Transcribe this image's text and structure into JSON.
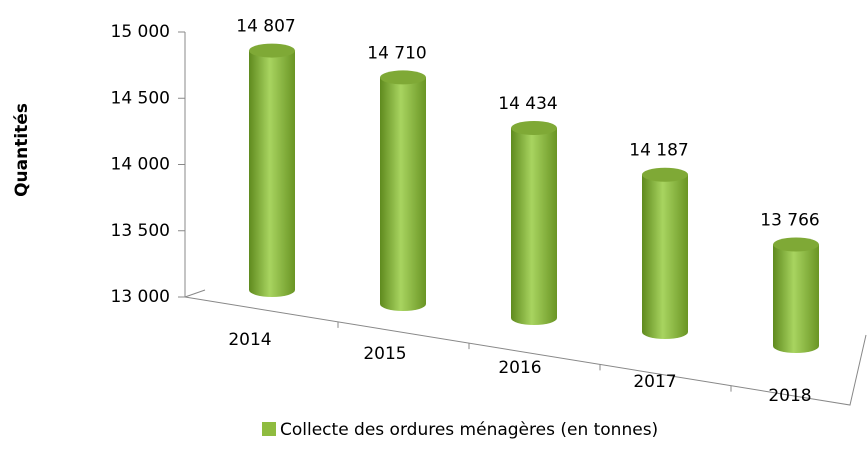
{
  "chart_data": {
    "type": "bar",
    "y_axis_label": "Quantités",
    "categories": [
      "2014",
      "2015",
      "2016",
      "2017",
      "2018"
    ],
    "series": [
      {
        "name": "Collecte des ordures ménagères (en tonnes)",
        "color": "#8fbc3f",
        "values": [
          14807,
          14710,
          14434,
          14187,
          13766
        ],
        "value_labels": [
          "14 807",
          "14 710",
          "14 434",
          "14 187",
          "13 766"
        ]
      }
    ],
    "ylim": [
      13000,
      15000
    ],
    "yticks": [
      {
        "value": 13000,
        "label": "13 000"
      },
      {
        "value": 13500,
        "label": "13 500"
      },
      {
        "value": 14000,
        "label": "14 000"
      },
      {
        "value": 14500,
        "label": "14 500"
      },
      {
        "value": 15000,
        "label": "15 000"
      }
    ]
  }
}
